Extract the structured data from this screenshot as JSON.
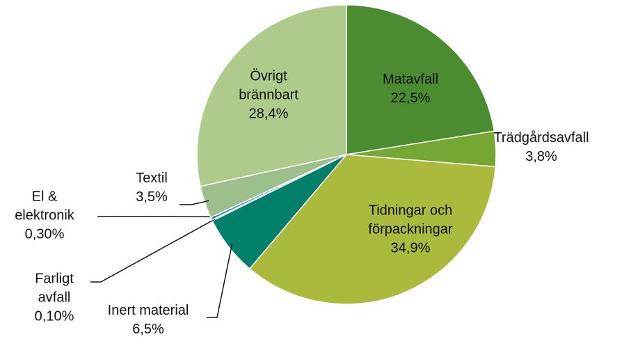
{
  "chart_data": {
    "type": "pie",
    "categories": [
      "Matavfall",
      "Trädgårdsavfall",
      "Tidningar och förpackningar",
      "Inert material",
      "Farligt avfall",
      "El & elektronik",
      "Textil",
      "Övrigt brännbart"
    ],
    "values": [
      22.5,
      3.8,
      34.9,
      6.5,
      0.1,
      0.3,
      3.5,
      28.4
    ],
    "value_labels": [
      "22,5%",
      "3,8%",
      "34,9%",
      "6,5%",
      "0,10%",
      "0,30%",
      "3,5%",
      "28,4%"
    ],
    "colors": [
      "#4b8c31",
      "#77a733",
      "#abb93c",
      "#00806a",
      "#2b6f8e",
      "#3596cc",
      "#9cbf8c",
      "#afcb8c"
    ]
  }
}
